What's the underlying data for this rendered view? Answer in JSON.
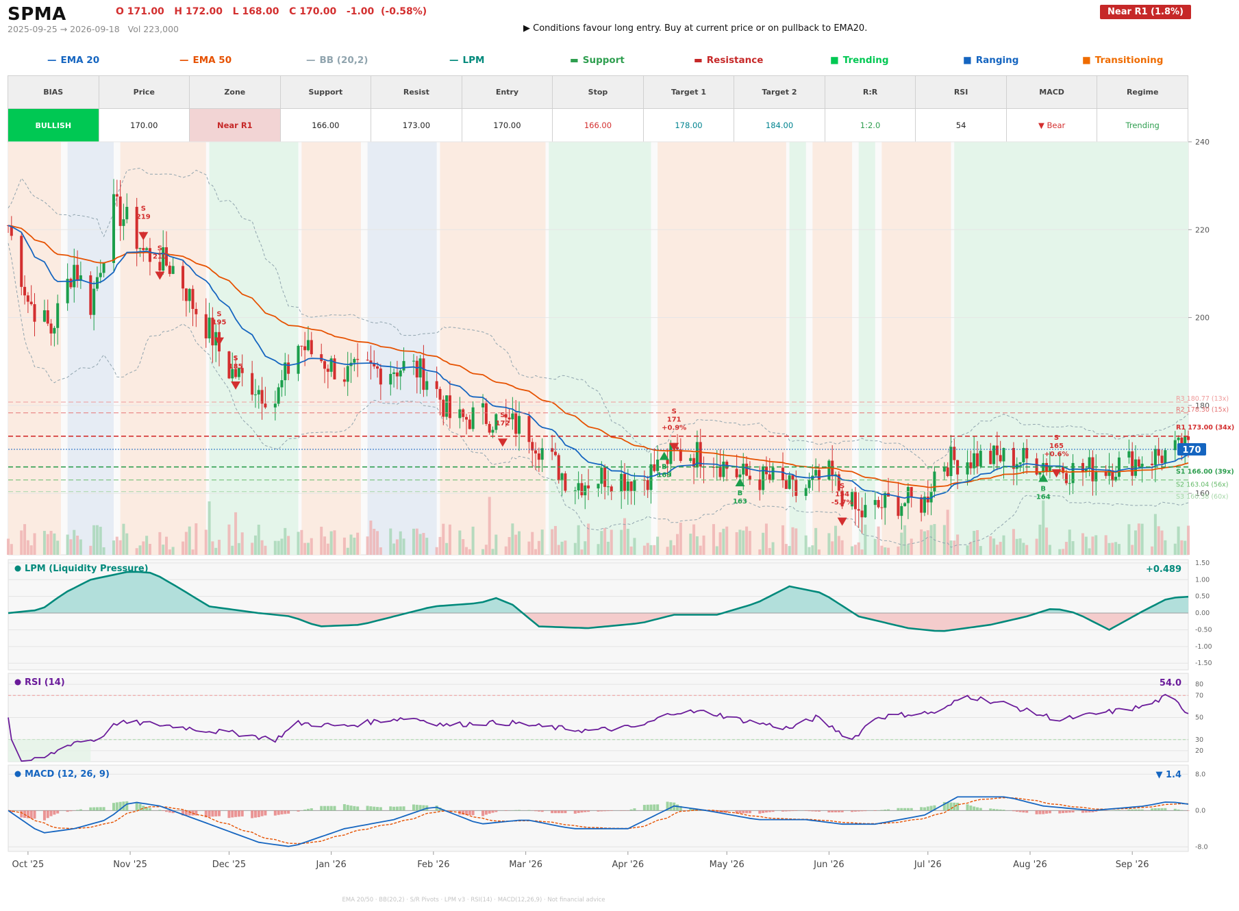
{
  "header": {
    "ticker": "SPMA",
    "ohlc": "O 171.00   H 172.00   L 168.00   C 170.00   -1.00  (-0.58%)",
    "range": "2025-09-25 → 2026-09-18   Vol 223,000",
    "advice": "▶  Conditions favour long entry. Buy at current price or on pullback to EMA20.",
    "badge": "Near R1  (1.8%)"
  },
  "legend": [
    {
      "label": "EMA 20",
      "symbol": "—",
      "color": "#1565c0"
    },
    {
      "label": "EMA 50",
      "symbol": "—",
      "color": "#e65100"
    },
    {
      "label": "BB (20,2)",
      "symbol": "—",
      "color": "#90a4ae"
    },
    {
      "label": "LPM",
      "symbol": "—",
      "color": "#00897b"
    },
    {
      "label": "Support",
      "symbol": "▬",
      "color": "#2e9e4f"
    },
    {
      "label": "Resistance",
      "symbol": "▬",
      "color": "#c62828"
    },
    {
      "label": "Trending",
      "symbol": "■",
      "color": "#00c853"
    },
    {
      "label": "Ranging",
      "symbol": "■",
      "color": "#1565c0"
    },
    {
      "label": "Transitioning",
      "symbol": "■",
      "color": "#ef6c00"
    }
  ],
  "table": {
    "headers": [
      "BIAS",
      "Price",
      "Zone",
      "Support",
      "Resist",
      "Entry",
      "Stop",
      "Target 1",
      "Target 2",
      "R:R",
      "RSI",
      "MACD",
      "Regime"
    ],
    "values": [
      "BULLISH",
      "170.00",
      "Near R1",
      "166.00",
      "173.00",
      "170.00",
      "166.00",
      "178.00",
      "184.00",
      "1:2.0",
      "54",
      "▼ Bear",
      "Trending"
    ],
    "colors": [
      "#ffffff",
      "#222222",
      "#c62828",
      "#222222",
      "#222222",
      "#222222",
      "#d32f2f",
      "#00838f",
      "#00838f",
      "#2e9e4f",
      "#222222",
      "#d32f2f",
      "#2e9e4f"
    ],
    "bias_bg": "#00c853",
    "zone_bg": "#f2d4d4"
  },
  "chart_data": [
    {
      "type": "candlestick",
      "title": "SPMA",
      "ylim": [
        146,
        240
      ],
      "y_ticks": [
        160,
        180,
        200,
        220,
        240
      ],
      "x_ticks": [
        "Oct '25",
        "Nov '25",
        "Dec '25",
        "Jan '26",
        "Feb '26",
        "Mar '26",
        "Apr '26",
        "May '26",
        "Jun '26",
        "Jul '26",
        "Aug '26",
        "Sep '26"
      ],
      "last_price_label": "170",
      "close_anchors": [
        [
          "2025-09-25",
          221
        ],
        [
          "2025-10-01",
          204
        ],
        [
          "2025-10-08",
          197
        ],
        [
          "2025-10-15",
          212
        ],
        [
          "2025-10-20",
          203
        ],
        [
          "2025-10-27",
          225
        ],
        [
          "2025-10-31",
          222
        ],
        [
          "2025-11-05",
          215
        ],
        [
          "2025-11-10",
          213
        ],
        [
          "2025-11-15",
          211
        ],
        [
          "2025-11-20",
          203
        ],
        [
          "2025-11-25",
          197
        ],
        [
          "2025-12-01",
          188
        ],
        [
          "2025-12-08",
          185
        ],
        [
          "2025-12-15",
          181
        ],
        [
          "2025-12-22",
          194
        ],
        [
          "2026-01-05",
          187
        ],
        [
          "2026-01-15",
          188
        ],
        [
          "2026-01-25",
          189
        ],
        [
          "2026-01-31",
          186
        ],
        [
          "2026-02-07",
          176
        ],
        [
          "2026-02-15",
          178
        ],
        [
          "2026-02-22",
          176
        ],
        [
          "2026-03-01",
          175
        ],
        [
          "2026-03-08",
          168
        ],
        [
          "2026-03-15",
          162
        ],
        [
          "2026-03-25",
          164
        ],
        [
          "2026-04-05",
          163
        ],
        [
          "2026-04-15",
          169
        ],
        [
          "2026-04-25",
          169
        ],
        [
          "2026-05-05",
          164
        ],
        [
          "2026-05-15",
          163
        ],
        [
          "2026-05-22",
          160
        ],
        [
          "2026-06-01",
          164
        ],
        [
          "2026-06-10",
          155
        ],
        [
          "2026-06-20",
          158
        ],
        [
          "2026-06-30",
          158
        ],
        [
          "2026-07-04",
          167
        ],
        [
          "2026-07-15",
          168
        ],
        [
          "2026-07-25",
          168
        ],
        [
          "2026-08-05",
          167
        ],
        [
          "2026-08-15",
          165
        ],
        [
          "2026-08-25",
          166
        ],
        [
          "2026-09-05",
          168
        ],
        [
          "2026-09-18",
          170
        ]
      ],
      "regimes": [
        {
          "from": "2025-09-25",
          "to": "2025-10-11",
          "state": "Transitioning"
        },
        {
          "from": "2025-10-13",
          "to": "2025-10-27",
          "state": "Ranging"
        },
        {
          "from": "2025-10-29",
          "to": "2025-11-24",
          "state": "Transitioning"
        },
        {
          "from": "2025-11-25",
          "to": "2025-12-22",
          "state": "Trending"
        },
        {
          "from": "2025-12-23",
          "to": "2026-01-10",
          "state": "Transitioning"
        },
        {
          "from": "2026-01-12",
          "to": "2026-02-02",
          "state": "Ranging"
        },
        {
          "from": "2026-02-03",
          "to": "2026-03-07",
          "state": "Transitioning"
        },
        {
          "from": "2026-03-08",
          "to": "2026-04-08",
          "state": "Trending"
        },
        {
          "from": "2026-04-10",
          "to": "2026-05-19",
          "state": "Transitioning"
        },
        {
          "from": "2026-05-20",
          "to": "2026-05-25",
          "state": "Trending"
        },
        {
          "from": "2026-05-27",
          "to": "2026-06-08",
          "state": "Transitioning"
        },
        {
          "from": "2026-06-10",
          "to": "2026-06-15",
          "state": "Trending"
        },
        {
          "from": "2026-06-17",
          "to": "2026-07-08",
          "state": "Transitioning"
        },
        {
          "from": "2026-07-09",
          "to": "2026-09-18",
          "state": "Trending"
        }
      ],
      "levels": [
        {
          "label": "R3 180.77 (13x)",
          "value": 180.77,
          "color": "#ef9a9a"
        },
        {
          "label": "R2 178.30 (15x)",
          "value": 178.3,
          "color": "#e57373"
        },
        {
          "label": "R1 173.00 (34x)",
          "value": 173.0,
          "color": "#d32f2f"
        },
        {
          "label": "S1 166.00 (39x)",
          "value": 166.0,
          "color": "#2e9e4f"
        },
        {
          "label": "S2 163.04 (56x)",
          "value": 163.04,
          "color": "#66bb6a"
        },
        {
          "label": "S3 160.38 (60x)",
          "value": 160.38,
          "color": "#a5d6a7"
        }
      ],
      "signals": [
        {
          "date": "2025-11-05",
          "side": "S",
          "lines": [
            "S",
            "219"
          ],
          "price": 219
        },
        {
          "date": "2025-11-10",
          "side": "S",
          "lines": [
            "S",
            "210"
          ],
          "price": 210
        },
        {
          "date": "2025-11-28",
          "side": "S",
          "lines": [
            "S",
            "195"
          ],
          "price": 195
        },
        {
          "date": "2025-12-03",
          "side": "S",
          "lines": [
            "S",
            "185"
          ],
          "price": 185
        },
        {
          "date": "2026-02-22",
          "side": "S",
          "lines": [
            "S",
            "172"
          ],
          "price": 172
        },
        {
          "date": "2026-04-12",
          "side": "B",
          "lines": [
            "B",
            "169"
          ],
          "price": 169
        },
        {
          "date": "2026-04-15",
          "side": "S",
          "lines": [
            "S",
            "171",
            "+0.9%"
          ],
          "price": 171
        },
        {
          "date": "2026-05-05",
          "side": "B",
          "lines": [
            "B",
            "163"
          ],
          "price": 163
        },
        {
          "date": "2026-06-05",
          "side": "S",
          "lines": [
            "S",
            "154",
            "-5.7%"
          ],
          "price": 154
        },
        {
          "date": "2026-08-05",
          "side": "B",
          "lines": [
            "B",
            "164"
          ],
          "price": 164
        },
        {
          "date": "2026-08-09",
          "side": "S",
          "lines": [
            "S",
            "165",
            "+0.6%"
          ],
          "price": 165
        }
      ]
    },
    {
      "type": "area",
      "title": "LPM (Liquidity Pressure)",
      "value_label": "+0.489",
      "ylim": [
        -1.7,
        1.6
      ],
      "y_ticks": [
        1.5,
        1.0,
        0.5,
        0.0,
        -0.5,
        -1.0,
        -1.5
      ],
      "series_anchors": [
        [
          "2025-09-25",
          0.0
        ],
        [
          "2025-10-05",
          0.1
        ],
        [
          "2025-10-12",
          0.6
        ],
        [
          "2025-10-20",
          1.0
        ],
        [
          "2025-11-01",
          1.25
        ],
        [
          "2025-11-08",
          1.2
        ],
        [
          "2025-11-15",
          0.8
        ],
        [
          "2025-11-25",
          0.2
        ],
        [
          "2025-12-10",
          0.0
        ],
        [
          "2025-12-20",
          -0.1
        ],
        [
          "2025-12-28",
          -0.4
        ],
        [
          "2026-01-10",
          -0.35
        ],
        [
          "2026-01-20",
          -0.1
        ],
        [
          "2026-02-01",
          0.2
        ],
        [
          "2026-02-15",
          0.3
        ],
        [
          "2026-02-20",
          0.45
        ],
        [
          "2026-02-25",
          0.25
        ],
        [
          "2026-03-05",
          -0.4
        ],
        [
          "2026-03-20",
          -0.45
        ],
        [
          "2026-04-05",
          -0.3
        ],
        [
          "2026-04-15",
          -0.05
        ],
        [
          "2026-04-28",
          -0.05
        ],
        [
          "2026-05-10",
          0.3
        ],
        [
          "2026-05-20",
          0.8
        ],
        [
          "2026-05-30",
          0.6
        ],
        [
          "2026-06-10",
          -0.1
        ],
        [
          "2026-06-25",
          -0.45
        ],
        [
          "2026-07-05",
          -0.55
        ],
        [
          "2026-07-20",
          -0.35
        ],
        [
          "2026-07-31",
          -0.1
        ],
        [
          "2026-08-08",
          0.15
        ],
        [
          "2026-08-15",
          0.0
        ],
        [
          "2026-08-25",
          -0.5
        ],
        [
          "2026-09-05",
          0.1
        ],
        [
          "2026-09-12",
          0.45
        ],
        [
          "2026-09-18",
          0.49
        ]
      ]
    },
    {
      "type": "line",
      "title": "RSI (14)",
      "value_label": "54.0",
      "ylim": [
        10,
        90
      ],
      "y_ticks": [
        80,
        70,
        50,
        30,
        20
      ],
      "series_anchors": [
        [
          "2025-09-25",
          50
        ],
        [
          "2025-09-27",
          10
        ],
        [
          "2025-10-05",
          12
        ],
        [
          "2025-10-15",
          28
        ],
        [
          "2025-10-22",
          30
        ],
        [
          "2025-10-28",
          45
        ],
        [
          "2025-11-05",
          45
        ],
        [
          "2025-11-15",
          42
        ],
        [
          "2025-11-25",
          38
        ],
        [
          "2025-12-05",
          35
        ],
        [
          "2025-12-15",
          30
        ],
        [
          "2025-12-22",
          45
        ],
        [
          "2026-01-05",
          42
        ],
        [
          "2026-01-15",
          47
        ],
        [
          "2026-01-25",
          50
        ],
        [
          "2026-02-05",
          43
        ],
        [
          "2026-02-15",
          45
        ],
        [
          "2026-02-25",
          45
        ],
        [
          "2026-03-05",
          42
        ],
        [
          "2026-03-20",
          38
        ],
        [
          "2026-04-05",
          42
        ],
        [
          "2026-04-15",
          55
        ],
        [
          "2026-04-25",
          55
        ],
        [
          "2026-05-05",
          48
        ],
        [
          "2026-05-20",
          40
        ],
        [
          "2026-05-28",
          50
        ],
        [
          "2026-06-08",
          30
        ],
        [
          "2026-06-15",
          50
        ],
        [
          "2026-06-25",
          53
        ],
        [
          "2026-07-05",
          55
        ],
        [
          "2026-07-12",
          70
        ],
        [
          "2026-07-25",
          62
        ],
        [
          "2026-08-01",
          55
        ],
        [
          "2026-08-10",
          48
        ],
        [
          "2026-08-25",
          55
        ],
        [
          "2026-09-05",
          60
        ],
        [
          "2026-09-12",
          70
        ],
        [
          "2026-09-18",
          54
        ]
      ]
    },
    {
      "type": "macd",
      "title": "MACD (12, 26, 9)",
      "value_label": "▼ 1.4",
      "ylim": [
        -9,
        10
      ],
      "y_ticks": [
        8.0,
        0.0,
        -8.0
      ],
      "series_anchors": [
        [
          "2025-09-25",
          0
        ],
        [
          "2025-10-05",
          -5
        ],
        [
          "2025-10-15",
          -4
        ],
        [
          "2025-10-25",
          -2
        ],
        [
          "2025-11-01",
          2
        ],
        [
          "2025-11-10",
          1
        ],
        [
          "2025-11-25",
          -3
        ],
        [
          "2025-12-10",
          -7
        ],
        [
          "2025-12-20",
          -8
        ],
        [
          "2026-01-05",
          -4
        ],
        [
          "2026-01-20",
          -2
        ],
        [
          "2026-02-01",
          1
        ],
        [
          "2026-02-15",
          -3
        ],
        [
          "2026-03-01",
          -2
        ],
        [
          "2026-03-15",
          -4
        ],
        [
          "2026-04-01",
          -4
        ],
        [
          "2026-04-15",
          1
        ],
        [
          "2026-04-25",
          0
        ],
        [
          "2026-05-10",
          -2
        ],
        [
          "2026-05-25",
          -2
        ],
        [
          "2026-06-05",
          -3
        ],
        [
          "2026-06-15",
          -3
        ],
        [
          "2026-06-30",
          -1
        ],
        [
          "2026-07-10",
          3
        ],
        [
          "2026-07-25",
          3
        ],
        [
          "2026-08-05",
          1
        ],
        [
          "2026-08-20",
          0
        ],
        [
          "2026-09-05",
          1
        ],
        [
          "2026-09-12",
          2
        ],
        [
          "2026-09-18",
          1.4
        ]
      ]
    }
  ],
  "footer": "EMA 20/50  ·  BB(20,2)  ·  S/R Pivots  ·  LPM v3  ·  RSI(14)  ·  MACD(12,26,9)  ·  Not financial advice",
  "colors": {
    "up": "#1b9e4b",
    "down": "#d32f2f",
    "ema20": "#1565c0",
    "ema50": "#e65100",
    "bb": "#90a4ae",
    "lpm": "#00897b",
    "rsi": "#6a1b9a",
    "macd_line": "#1565c0",
    "signal_line": "#e65100",
    "trending_bg": "#e4f5ea",
    "ranging_bg": "#e6ecf4",
    "transitioning_bg": "#fbebe1"
  }
}
